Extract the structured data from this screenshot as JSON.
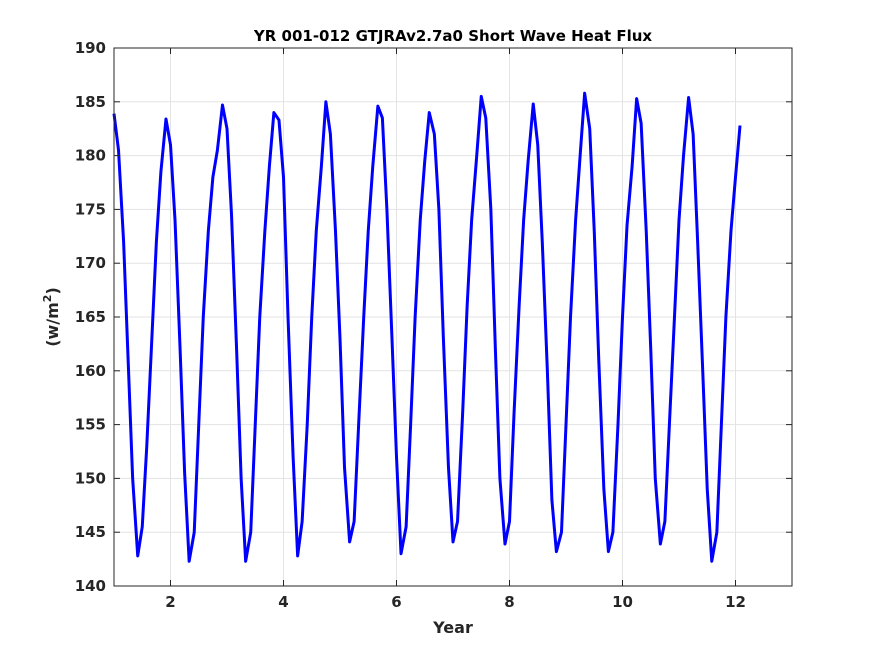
{
  "chart_data": {
    "type": "line",
    "title": "YR 001-012 GTJRAv2.7a0 Short Wave Heat Flux",
    "xlabel": "Year",
    "ylabel": "(w/m",
    "ylabel_superscript": "2",
    "ylabel_suffix": ")",
    "xlim": [
      1,
      13
    ],
    "ylim": [
      140,
      190
    ],
    "xticks": [
      2,
      4,
      6,
      8,
      10,
      12
    ],
    "yticks": [
      140,
      145,
      150,
      155,
      160,
      165,
      170,
      175,
      180,
      185,
      190
    ],
    "grid": true,
    "line_color": "#0000ff",
    "series": [
      {
        "values": [
          [
            1.0,
            183.9
          ],
          [
            1.08,
            180.5
          ],
          [
            1.17,
            172.0
          ],
          [
            1.25,
            161.0
          ],
          [
            1.33,
            150.0
          ],
          [
            1.42,
            142.8
          ],
          [
            1.5,
            145.5
          ],
          [
            1.58,
            153.0
          ],
          [
            1.67,
            163.0
          ],
          [
            1.75,
            172.0
          ],
          [
            1.83,
            178.5
          ],
          [
            1.92,
            183.4
          ],
          [
            2.0,
            181.0
          ],
          [
            2.08,
            174.0
          ],
          [
            2.17,
            162.0
          ],
          [
            2.25,
            150.5
          ],
          [
            2.33,
            142.3
          ],
          [
            2.42,
            145.0
          ],
          [
            2.5,
            155.0
          ],
          [
            2.58,
            165.0
          ],
          [
            2.67,
            173.0
          ],
          [
            2.75,
            178.0
          ],
          [
            2.83,
            180.5
          ],
          [
            2.92,
            184.7
          ],
          [
            3.0,
            182.5
          ],
          [
            3.08,
            174.5
          ],
          [
            3.17,
            162.0
          ],
          [
            3.25,
            150.0
          ],
          [
            3.33,
            142.3
          ],
          [
            3.42,
            145.0
          ],
          [
            3.5,
            155.0
          ],
          [
            3.58,
            165.0
          ],
          [
            3.67,
            173.0
          ],
          [
            3.75,
            179.0
          ],
          [
            3.83,
            184.0
          ],
          [
            3.92,
            183.3
          ],
          [
            4.0,
            178.0
          ],
          [
            4.08,
            165.0
          ],
          [
            4.17,
            152.0
          ],
          [
            4.25,
            142.8
          ],
          [
            4.33,
            146.0
          ],
          [
            4.42,
            155.0
          ],
          [
            4.5,
            165.0
          ],
          [
            4.58,
            173.0
          ],
          [
            4.67,
            179.0
          ],
          [
            4.75,
            185.0
          ],
          [
            4.83,
            182.0
          ],
          [
            4.92,
            173.0
          ],
          [
            5.0,
            163.0
          ],
          [
            5.08,
            151.0
          ],
          [
            5.17,
            144.1
          ],
          [
            5.25,
            146.0
          ],
          [
            5.33,
            155.0
          ],
          [
            5.42,
            165.0
          ],
          [
            5.5,
            173.0
          ],
          [
            5.58,
            179.0
          ],
          [
            5.67,
            184.6
          ],
          [
            5.75,
            183.5
          ],
          [
            5.83,
            175.0
          ],
          [
            5.92,
            163.0
          ],
          [
            6.0,
            152.0
          ],
          [
            6.08,
            143.0
          ],
          [
            6.17,
            145.5
          ],
          [
            6.25,
            155.0
          ],
          [
            6.33,
            165.0
          ],
          [
            6.42,
            174.0
          ],
          [
            6.5,
            179.5
          ],
          [
            6.58,
            184.0
          ],
          [
            6.67,
            182.0
          ],
          [
            6.75,
            175.0
          ],
          [
            6.83,
            163.0
          ],
          [
            6.92,
            151.0
          ],
          [
            7.0,
            144.1
          ],
          [
            7.08,
            146.0
          ],
          [
            7.17,
            156.0
          ],
          [
            7.25,
            166.0
          ],
          [
            7.33,
            174.0
          ],
          [
            7.42,
            180.0
          ],
          [
            7.5,
            185.5
          ],
          [
            7.58,
            183.5
          ],
          [
            7.67,
            175.0
          ],
          [
            7.75,
            162.0
          ],
          [
            7.83,
            150.0
          ],
          [
            7.92,
            143.9
          ],
          [
            8.0,
            146.0
          ],
          [
            8.08,
            156.0
          ],
          [
            8.17,
            166.0
          ],
          [
            8.25,
            174.0
          ],
          [
            8.33,
            179.5
          ],
          [
            8.42,
            184.8
          ],
          [
            8.5,
            181.0
          ],
          [
            8.58,
            172.0
          ],
          [
            8.67,
            160.0
          ],
          [
            8.75,
            148.0
          ],
          [
            8.83,
            143.2
          ],
          [
            8.92,
            145.0
          ],
          [
            9.0,
            155.0
          ],
          [
            9.08,
            165.0
          ],
          [
            9.17,
            174.0
          ],
          [
            9.25,
            180.0
          ],
          [
            9.33,
            185.8
          ],
          [
            9.42,
            182.5
          ],
          [
            9.5,
            173.0
          ],
          [
            9.58,
            161.0
          ],
          [
            9.67,
            149.0
          ],
          [
            9.75,
            143.2
          ],
          [
            9.83,
            145.0
          ],
          [
            9.92,
            155.0
          ],
          [
            10.0,
            165.0
          ],
          [
            10.08,
            173.5
          ],
          [
            10.17,
            179.0
          ],
          [
            10.25,
            185.3
          ],
          [
            10.33,
            183.0
          ],
          [
            10.42,
            173.0
          ],
          [
            10.5,
            162.0
          ],
          [
            10.58,
            150.0
          ],
          [
            10.67,
            143.9
          ],
          [
            10.75,
            146.0
          ],
          [
            10.83,
            155.0
          ],
          [
            10.92,
            165.0
          ],
          [
            11.0,
            174.0
          ],
          [
            11.08,
            180.0
          ],
          [
            11.17,
            185.4
          ],
          [
            11.25,
            182.0
          ],
          [
            11.33,
            172.0
          ],
          [
            11.42,
            160.0
          ],
          [
            11.5,
            149.0
          ],
          [
            11.58,
            142.3
          ],
          [
            11.67,
            145.0
          ],
          [
            11.75,
            155.0
          ],
          [
            11.83,
            165.0
          ],
          [
            11.92,
            173.0
          ],
          [
            12.0,
            178.0
          ],
          [
            12.08,
            182.8
          ]
        ]
      }
    ]
  }
}
